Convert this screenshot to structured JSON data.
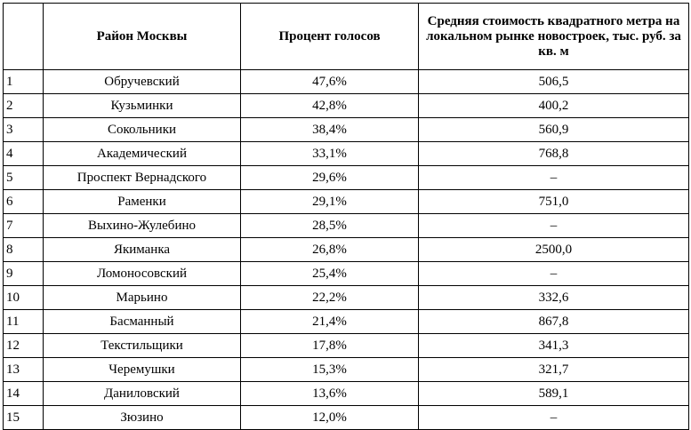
{
  "table": {
    "headers": {
      "index": "",
      "district": "Район Москвы",
      "votes": "Процент голосов",
      "price": "Средняя стоимость квадратного метра на локальном рынке новостроек, тыс. руб. за кв. м"
    },
    "rows": [
      {
        "n": "1",
        "district": "Обручевский",
        "votes": "47,6%",
        "price": "506,5"
      },
      {
        "n": "2",
        "district": "Кузьминки",
        "votes": "42,8%",
        "price": "400,2"
      },
      {
        "n": "3",
        "district": "Сокольники",
        "votes": "38,4%",
        "price": "560,9"
      },
      {
        "n": "4",
        "district": "Академический",
        "votes": "33,1%",
        "price": "768,8"
      },
      {
        "n": "5",
        "district": "Проспект Вернадского",
        "votes": "29,6%",
        "price": "–"
      },
      {
        "n": "6",
        "district": "Раменки",
        "votes": "29,1%",
        "price": "751,0"
      },
      {
        "n": "7",
        "district": "Выхино-Жулебино",
        "votes": "28,5%",
        "price": "–"
      },
      {
        "n": "8",
        "district": "Якиманка",
        "votes": "26,8%",
        "price": "2500,0"
      },
      {
        "n": "9",
        "district": "Ломоносовский",
        "votes": "25,4%",
        "price": "–"
      },
      {
        "n": "10",
        "district": "Марьино",
        "votes": "22,2%",
        "price": "332,6"
      },
      {
        "n": "11",
        "district": "Басманный",
        "votes": "21,4%",
        "price": "867,8"
      },
      {
        "n": "12",
        "district": "Текстильщики",
        "votes": "17,8%",
        "price": "341,3"
      },
      {
        "n": "13",
        "district": "Черемушки",
        "votes": "15,3%",
        "price": "321,7"
      },
      {
        "n": "14",
        "district": "Даниловский",
        "votes": "13,6%",
        "price": "589,1"
      },
      {
        "n": "15",
        "district": "Зюзино",
        "votes": "12,0%",
        "price": "–"
      }
    ]
  }
}
